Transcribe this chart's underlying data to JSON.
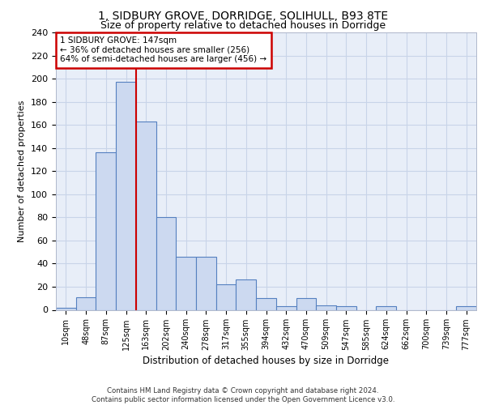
{
  "title_line1": "1, SIDBURY GROVE, DORRIDGE, SOLIHULL, B93 8TE",
  "title_line2": "Size of property relative to detached houses in Dorridge",
  "xlabel": "Distribution of detached houses by size in Dorridge",
  "ylabel": "Number of detached properties",
  "bar_labels": [
    "10sqm",
    "48sqm",
    "87sqm",
    "125sqm",
    "163sqm",
    "202sqm",
    "240sqm",
    "278sqm",
    "317sqm",
    "355sqm",
    "394sqm",
    "432sqm",
    "470sqm",
    "509sqm",
    "547sqm",
    "585sqm",
    "624sqm",
    "662sqm",
    "700sqm",
    "739sqm",
    "777sqm"
  ],
  "bar_values": [
    2,
    11,
    136,
    197,
    163,
    80,
    46,
    46,
    22,
    26,
    10,
    3,
    10,
    4,
    3,
    0,
    3,
    0,
    0,
    0,
    3
  ],
  "bar_color": "#ccd9f0",
  "bar_edge_color": "#5580c0",
  "vline_color": "#cc0000",
  "annotation_text": "1 SIDBURY GROVE: 147sqm\n← 36% of detached houses are smaller (256)\n64% of semi-detached houses are larger (456) →",
  "annotation_box_color": "#ffffff",
  "annotation_box_edge": "#cc0000",
  "grid_color": "#c8d4e8",
  "background_color": "#e8eef8",
  "footer_text": "Contains HM Land Registry data © Crown copyright and database right 2024.\nContains public sector information licensed under the Open Government Licence v3.0.",
  "ylim": [
    0,
    240
  ],
  "yticks": [
    0,
    20,
    40,
    60,
    80,
    100,
    120,
    140,
    160,
    180,
    200,
    220,
    240
  ]
}
